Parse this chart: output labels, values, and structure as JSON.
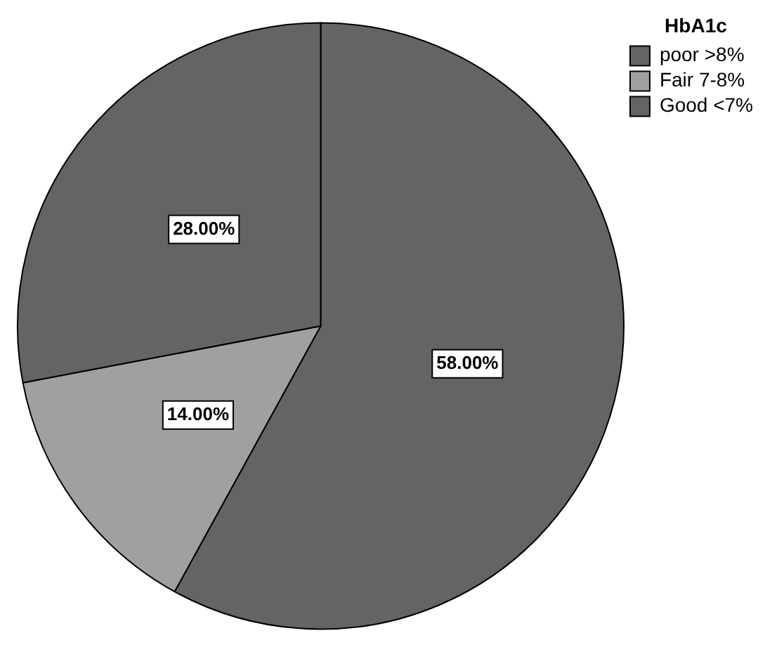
{
  "chart_data": {
    "type": "pie",
    "legend_title": "HbA1c",
    "legend": "top right",
    "categories": [
      "poor >8%",
      "Fair 7-8%",
      "Good <7%"
    ],
    "values": [
      58,
      14,
      28
    ],
    "colors": [
      "#646464",
      "#a0a0a0",
      "#646464"
    ],
    "value_labels": [
      "58.00%",
      "14.00%",
      "28.00%"
    ]
  }
}
